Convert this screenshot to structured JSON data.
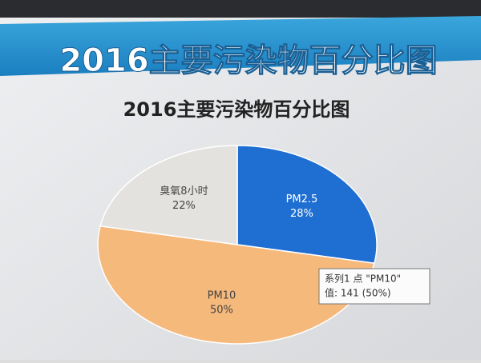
{
  "slide_title": "2016主要污染物百分比图",
  "chart_data": {
    "type": "pie",
    "title": "2016主要污染物百分比图",
    "categories": [
      "PM2.5",
      "PM10",
      "臭氧8小时"
    ],
    "values": [
      28,
      50,
      22
    ],
    "value_labels": [
      "28%",
      "50%",
      "22%"
    ],
    "colors": [
      "#1f6ed2",
      "#f6b97c",
      "#e4e2df"
    ]
  },
  "tooltip": {
    "line1": "系列1 点 \"PM10\"",
    "line2": "值: 141 (50%)"
  }
}
